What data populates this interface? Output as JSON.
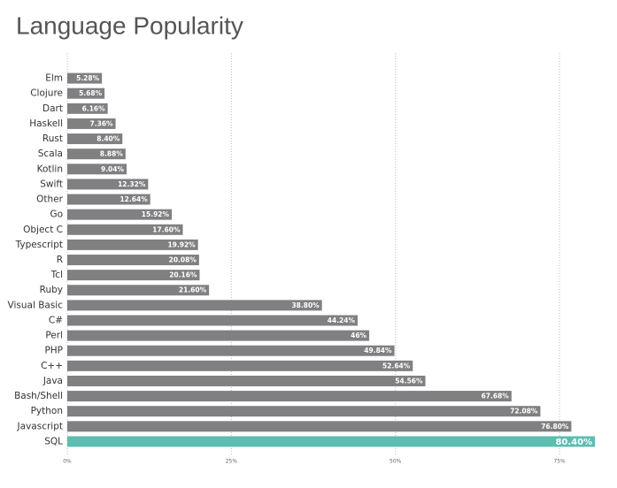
{
  "chart_data": {
    "type": "bar",
    "orientation": "horizontal",
    "title": "Language Popularity",
    "categories": [
      "Elm",
      "Clojure",
      "Dart",
      "Haskell",
      "Rust",
      "Scala",
      "Kotlin",
      "Swift",
      "Other",
      "Go",
      "Object C",
      "Typescript",
      "R",
      "Tcl",
      "Ruby",
      "Visual Basic",
      "C#",
      "Perl",
      "PHP",
      "C++",
      "Java",
      "Bash/Shell",
      "Python",
      "Javascript",
      "SQL"
    ],
    "values": [
      5.28,
      5.68,
      6.16,
      7.36,
      8.4,
      8.88,
      9.04,
      12.32,
      12.64,
      15.92,
      17.6,
      19.92,
      20.08,
      20.16,
      21.6,
      38.8,
      44.24,
      46,
      49.84,
      52.64,
      54.56,
      67.68,
      72.08,
      76.8,
      80.4
    ],
    "value_labels": [
      "5.28%",
      "5.68%",
      "6.16%",
      "7.36%",
      "8.40%",
      "8.88%",
      "9.04%",
      "12.32%",
      "12.64%",
      "15.92%",
      "17.60%",
      "19.92%",
      "20.08%",
      "20.16%",
      "21.60%",
      "38.80%",
      "44.24%",
      "46%",
      "49.84%",
      "52.64%",
      "54.56%",
      "67.68%",
      "72.08%",
      "76.80%",
      "80.40%"
    ],
    "colors": [
      "#808083",
      "#808083",
      "#808083",
      "#808083",
      "#808083",
      "#808083",
      "#808083",
      "#808083",
      "#808083",
      "#808083",
      "#808083",
      "#808083",
      "#808083",
      "#808083",
      "#808083",
      "#808083",
      "#808083",
      "#808083",
      "#808083",
      "#808083",
      "#808083",
      "#808083",
      "#808083",
      "#808083",
      "#5cbdb0"
    ],
    "xlim": [
      0,
      82
    ],
    "xticks": [
      {
        "value": 0,
        "label": "0%"
      },
      {
        "value": 25,
        "label": "25%"
      },
      {
        "value": 50,
        "label": "50%"
      },
      {
        "value": 75,
        "label": "75%"
      }
    ],
    "grid": true
  }
}
